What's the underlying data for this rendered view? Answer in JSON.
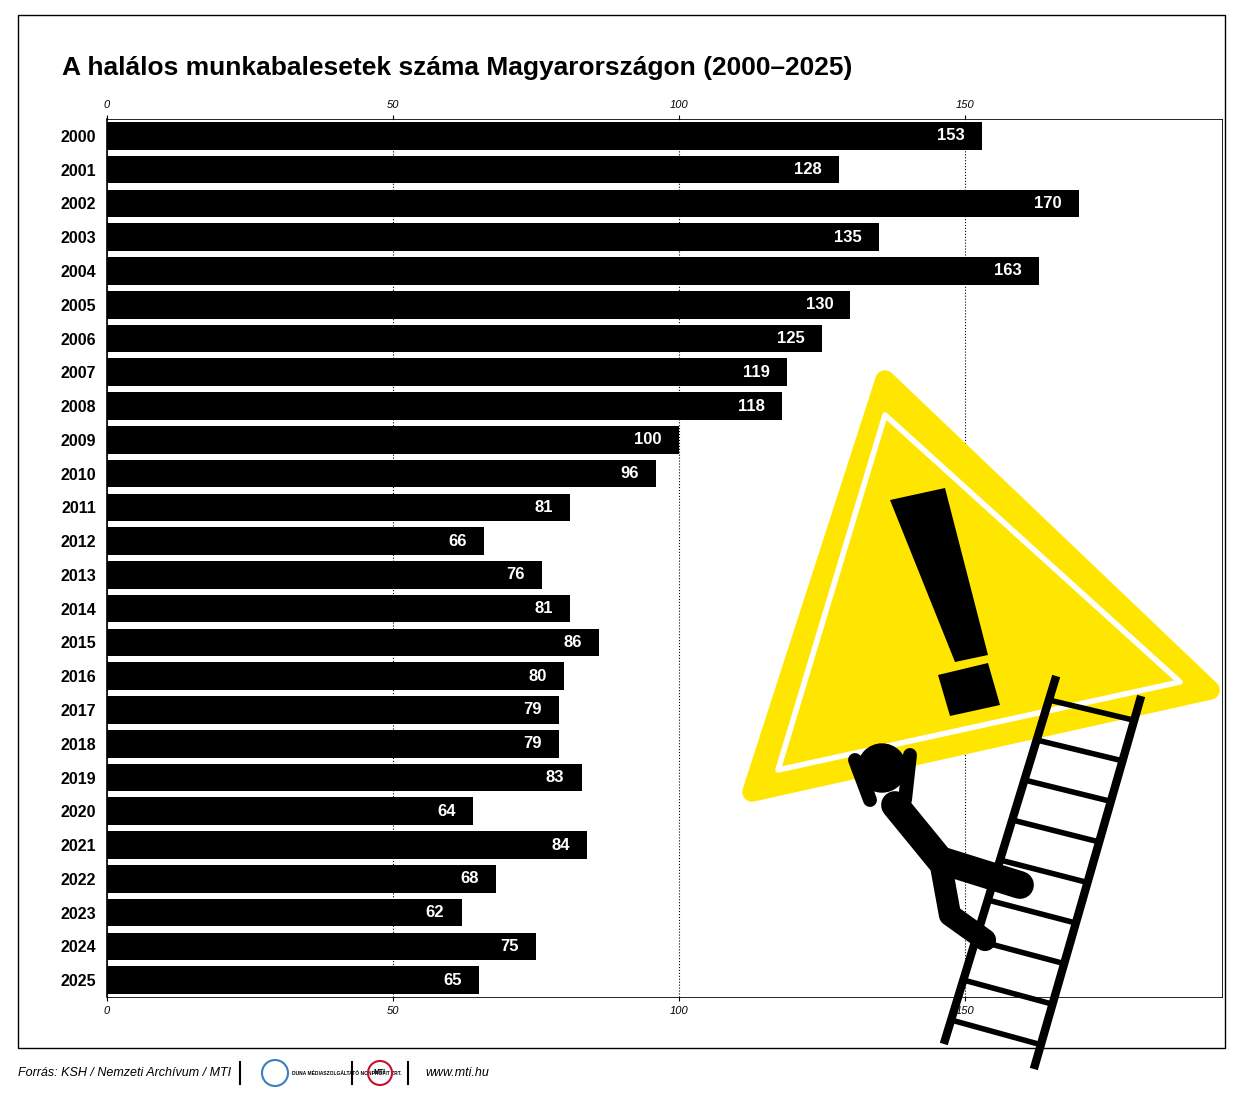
{
  "chart_data": {
    "type": "bar",
    "title": "A halálos munkabalesetek száma Magyarországon (2000–2025)",
    "orientation": "horizontal",
    "categories": [
      "2000",
      "2001",
      "2002",
      "2003",
      "2004",
      "2005",
      "2006",
      "2007",
      "2008",
      "2009",
      "2010",
      "2011",
      "2012",
      "2013",
      "2014",
      "2015",
      "2016",
      "2017",
      "2018",
      "2019",
      "2020",
      "2021",
      "2022",
      "2023",
      "2024",
      "2025"
    ],
    "values": [
      153,
      128,
      170,
      135,
      163,
      130,
      125,
      119,
      118,
      100,
      96,
      81,
      66,
      76,
      81,
      86,
      80,
      79,
      79,
      83,
      64,
      84,
      68,
      62,
      75,
      65
    ],
    "color": "#000000",
    "xlim": [
      0,
      195
    ],
    "xticks": [
      0,
      50,
      100,
      150
    ],
    "grid": true,
    "data_labels": true,
    "source": "Forrás: KSH / Nemzeti Archívum / MTI",
    "annotations": [
      "DUNA MÉDIASZOLGÁLTATÓ NONPROFIT ZRT.",
      "MTI",
      "www.mti.hu"
    ]
  }
}
